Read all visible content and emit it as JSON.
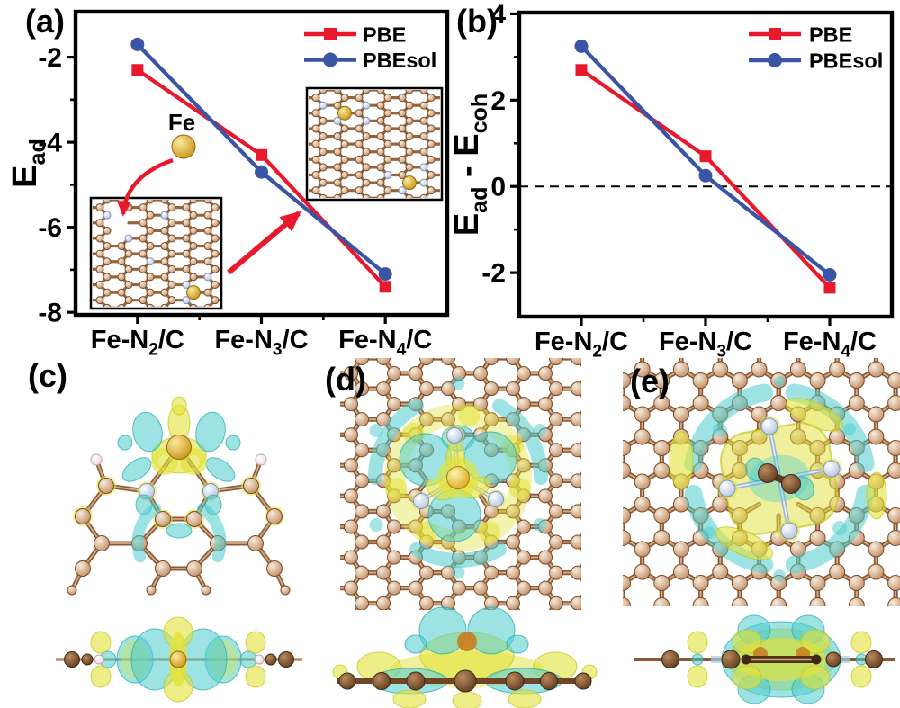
{
  "panels": {
    "a": "(a)",
    "b": "(b)",
    "c": "(c)",
    "d": "(d)",
    "e": "(e)"
  },
  "colors": {
    "pbe_red": "#e8192d",
    "pbesol_blue": "#3a55a5",
    "axis_black": "#000000",
    "iso_yellow": "#e2e23a",
    "iso_cyan": "#4ecccc",
    "carbon_brown": "#9a6a42",
    "nitrogen_blue": "#b5c6e4",
    "iron_gold": "#d09a12",
    "hydrogen_white": "#f3e3e8"
  },
  "chart_data": [
    {
      "id": "a",
      "type": "line",
      "title": "",
      "xlabel": "",
      "ylabel": "E_ad",
      "ylabel_parts": [
        {
          "t": "E"
        },
        {
          "t": "ad",
          "sub": true
        }
      ],
      "categories": [
        "Fe-N2/C",
        "Fe-N3/C",
        "Fe-N4/C"
      ],
      "categories_parts": [
        [
          {
            "t": "Fe-N"
          },
          {
            "t": "2",
            "sub": true
          },
          {
            "t": "/C"
          }
        ],
        [
          {
            "t": "Fe-N"
          },
          {
            "t": "3",
            "sub": true
          },
          {
            "t": "/C"
          }
        ],
        [
          {
            "t": "Fe-N"
          },
          {
            "t": "4",
            "sub": true
          },
          {
            "t": "/C"
          }
        ]
      ],
      "ylim": [
        -8.06,
        -0.93
      ],
      "yticks": [
        -2,
        -4,
        -6,
        -8
      ],
      "yticks_minor": [
        -3,
        -5,
        -7
      ],
      "grid": false,
      "legend_position": "top-right",
      "series": [
        {
          "name": "PBE",
          "color": "#e8192d",
          "marker": "square",
          "values": [
            -2.3,
            -4.3,
            -7.4
          ]
        },
        {
          "name": "PBEsol",
          "color": "#3a55a5",
          "marker": "circle",
          "values": [
            -1.7,
            -4.7,
            -7.1
          ]
        }
      ],
      "annotations": {
        "fe_label": "Fe"
      }
    },
    {
      "id": "b",
      "type": "line",
      "title": "",
      "xlabel": "",
      "ylabel": "E_ad - E_coh",
      "ylabel_parts": [
        {
          "t": "E"
        },
        {
          "t": "ad",
          "sub": true
        },
        {
          "t": " - E"
        },
        {
          "t": "coh",
          "sub": true
        }
      ],
      "categories": [
        "Fe-N2/C",
        "Fe-N3/C",
        "Fe-N4/C"
      ],
      "categories_parts": [
        [
          {
            "t": "Fe-N"
          },
          {
            "t": "2",
            "sub": true
          },
          {
            "t": "/C"
          }
        ],
        [
          {
            "t": "Fe-N"
          },
          {
            "t": "3",
            "sub": true
          },
          {
            "t": "/C"
          }
        ],
        [
          {
            "t": "Fe-N"
          },
          {
            "t": "4",
            "sub": true
          },
          {
            "t": "/C"
          }
        ]
      ],
      "ylim": [
        -3.02,
        4.03
      ],
      "yticks": [
        4,
        2,
        0,
        -2
      ],
      "yticks_minor": [
        3,
        1,
        -1
      ],
      "zero_line": true,
      "grid": false,
      "legend_position": "top-right",
      "series": [
        {
          "name": "PBE",
          "color": "#e8192d",
          "marker": "square",
          "values": [
            2.7,
            0.7,
            -2.35
          ]
        },
        {
          "name": "PBEsol",
          "color": "#3a55a5",
          "marker": "circle",
          "values": [
            3.25,
            0.25,
            -2.05
          ]
        }
      ]
    }
  ]
}
